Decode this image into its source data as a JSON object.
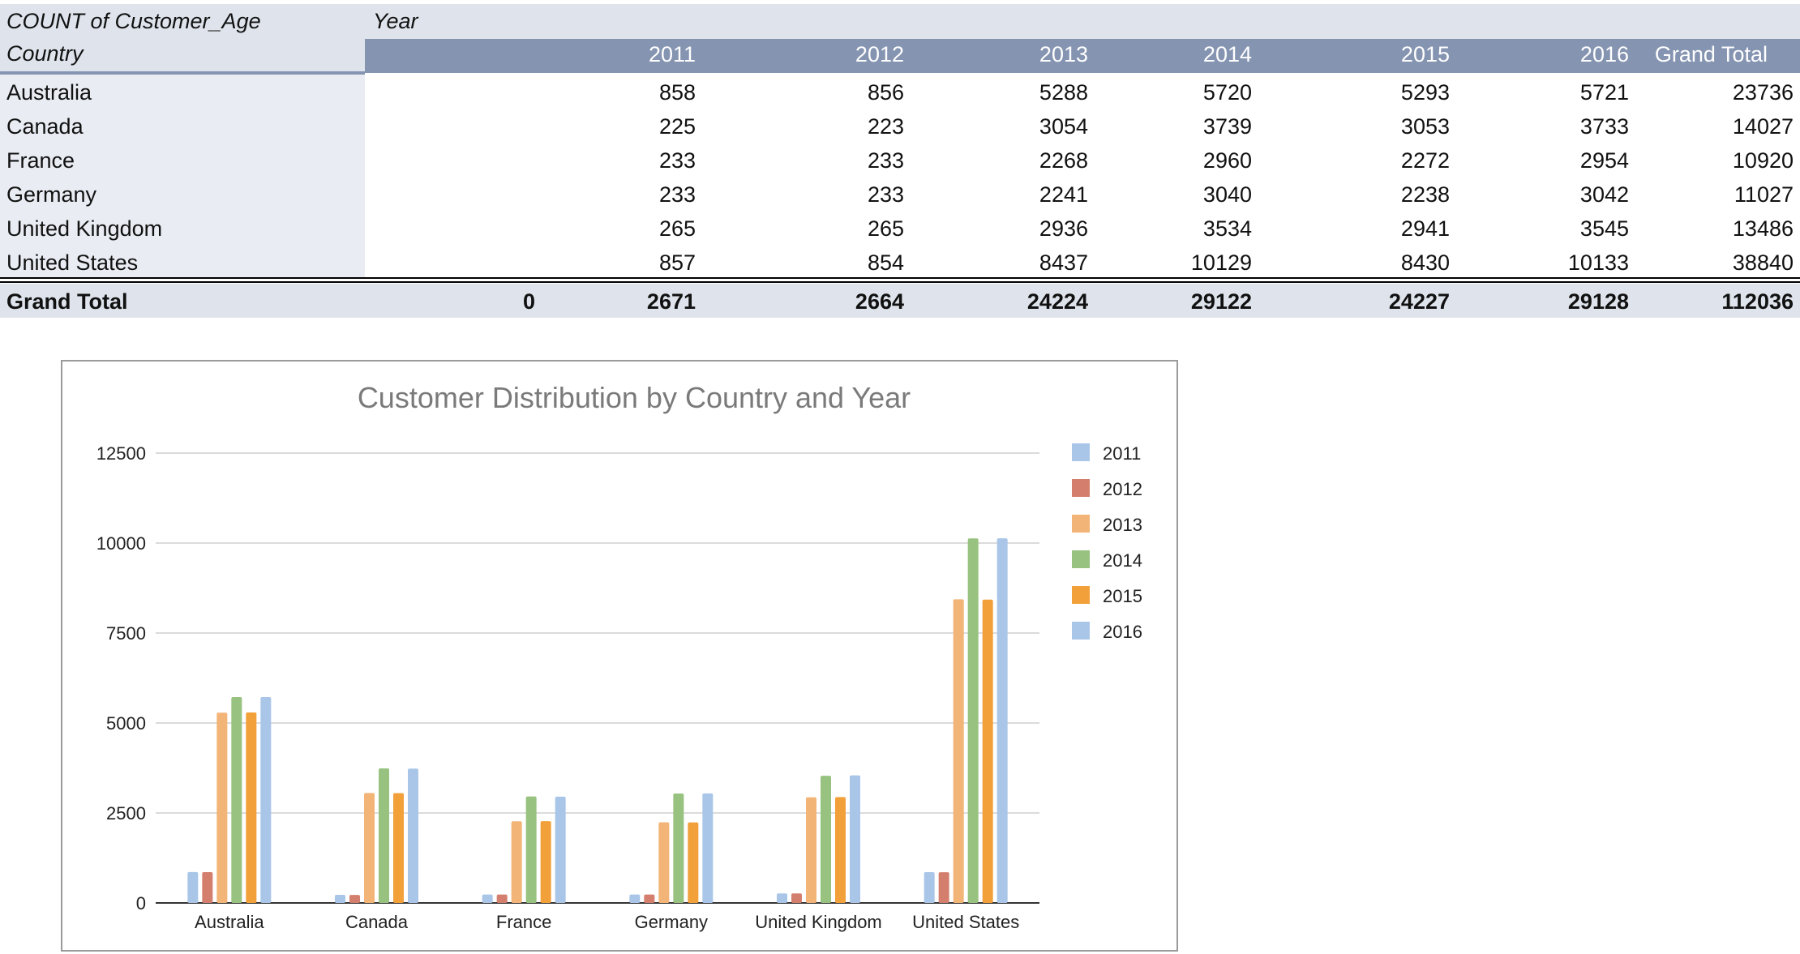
{
  "pivot": {
    "measure_label": "COUNT of Customer_Age",
    "column_field": "Year",
    "row_field": "Country",
    "years": [
      "2011",
      "2012",
      "2013",
      "2014",
      "2015",
      "2016"
    ],
    "grand_total_header": "Grand Total",
    "rows": [
      {
        "country": "Australia",
        "values": [
          "858",
          "856",
          "5288",
          "5720",
          "5293",
          "5721"
        ],
        "total": "23736"
      },
      {
        "country": "Canada",
        "values": [
          "225",
          "223",
          "3054",
          "3739",
          "3053",
          "3733"
        ],
        "total": "14027"
      },
      {
        "country": "France",
        "values": [
          "233",
          "233",
          "2268",
          "2960",
          "2272",
          "2954"
        ],
        "total": "10920"
      },
      {
        "country": "Germany",
        "values": [
          "233",
          "233",
          "2241",
          "3040",
          "2238",
          "3042"
        ],
        "total": "11027"
      },
      {
        "country": "United Kingdom",
        "values": [
          "265",
          "265",
          "2936",
          "3534",
          "2941",
          "3545"
        ],
        "total": "13486"
      },
      {
        "country": "United States",
        "values": [
          "857",
          "854",
          "8437",
          "10129",
          "8430",
          "10133"
        ],
        "total": "38840"
      }
    ],
    "grand_total": {
      "label": "Grand Total",
      "blank_value": "0",
      "values": [
        "2671",
        "2664",
        "24224",
        "29122",
        "24227",
        "29128"
      ],
      "total": "112036"
    }
  },
  "chart_data": {
    "type": "bar",
    "title": "Customer Distribution by Country and Year",
    "categories": [
      "Australia",
      "Canada",
      "France",
      "Germany",
      "United Kingdom",
      "United States"
    ],
    "series": [
      {
        "name": "2011",
        "color": "#a9c6e8",
        "values": [
          858,
          225,
          233,
          233,
          265,
          857
        ]
      },
      {
        "name": "2012",
        "color": "#d47f6e",
        "values": [
          856,
          223,
          233,
          233,
          265,
          854
        ]
      },
      {
        "name": "2013",
        "color": "#f2b477",
        "values": [
          5288,
          3054,
          2268,
          2241,
          2936,
          8437
        ]
      },
      {
        "name": "2014",
        "color": "#98c27f",
        "values": [
          5720,
          3739,
          2960,
          3040,
          3534,
          10129
        ]
      },
      {
        "name": "2015",
        "color": "#f2a03a",
        "values": [
          5293,
          3053,
          2272,
          2238,
          2941,
          8430
        ]
      },
      {
        "name": "2016",
        "color": "#a9c6e8",
        "values": [
          5721,
          3733,
          2954,
          3042,
          3545,
          10133
        ]
      }
    ],
    "ylim": [
      0,
      12500
    ],
    "yticks": [
      "0",
      "2500",
      "5000",
      "7500",
      "10000",
      "12500"
    ],
    "grid": true,
    "legend": "right"
  }
}
